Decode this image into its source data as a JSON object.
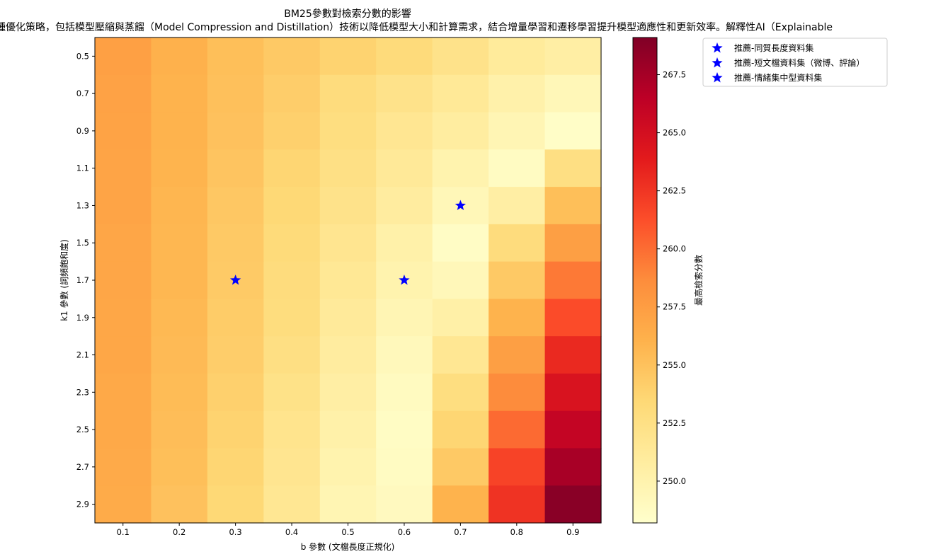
{
  "chart_data": {
    "type": "heatmap",
    "title": "BM25參數對檢索分數的影響",
    "subtitle": "種優化策略，包括模型壓縮與蒸餾（Model Compression and Distillation）技術以降低模型大小和計算需求，結合增量學習和遷移學習提升模型適應性和更新效率。解釋性AI（Explainable",
    "xlabel": "b 參數 (文檔長度正規化)",
    "ylabel": "k1 參數 (詞頻飽和度)",
    "x_values": [
      "0.1",
      "0.2",
      "0.3",
      "0.4",
      "0.5",
      "0.6",
      "0.7",
      "0.8",
      "0.9"
    ],
    "y_values": [
      "0.5",
      "0.7",
      "0.9",
      "1.1",
      "1.3",
      "1.5",
      "1.7",
      "1.9",
      "2.1",
      "2.3",
      "2.5",
      "2.7",
      "2.9"
    ],
    "z": [
      [
        257.3,
        256.1,
        255.2,
        254.5,
        253.8,
        253.1,
        252.2,
        251.1,
        250.6
      ],
      [
        257.2,
        256.0,
        255.1,
        254.2,
        253.0,
        252.2,
        251.4,
        250.2,
        249.4
      ],
      [
        257.1,
        256.0,
        255.0,
        254.0,
        252.8,
        251.7,
        250.8,
        249.6,
        248.5
      ],
      [
        257.0,
        255.9,
        254.8,
        253.6,
        252.5,
        251.3,
        250.0,
        248.8,
        252.6
      ],
      [
        257.0,
        255.8,
        254.6,
        253.4,
        252.2,
        250.9,
        249.4,
        250.6,
        255.2
      ],
      [
        256.9,
        255.7,
        254.5,
        253.2,
        251.8,
        250.3,
        248.6,
        253.0,
        257.4
      ],
      [
        256.9,
        255.7,
        254.4,
        253.0,
        251.5,
        250.0,
        249.3,
        254.5,
        259.5
      ],
      [
        256.8,
        255.6,
        254.3,
        252.9,
        251.2,
        249.6,
        250.4,
        256.0,
        261.4
      ],
      [
        256.8,
        255.5,
        254.2,
        252.6,
        250.9,
        249.2,
        251.6,
        257.4,
        263.1
      ],
      [
        256.7,
        255.4,
        254.0,
        252.3,
        250.6,
        248.9,
        252.8,
        258.7,
        264.6
      ],
      [
        256.7,
        255.3,
        253.8,
        252.0,
        250.3,
        248.7,
        253.6,
        260.1,
        266.0
      ],
      [
        256.6,
        255.2,
        253.6,
        251.8,
        250.0,
        248.8,
        254.5,
        261.8,
        267.4
      ],
      [
        256.5,
        255.0,
        253.4,
        251.6,
        249.7,
        249.0,
        256.0,
        262.6,
        268.7
      ]
    ],
    "zlim": [
      248.2,
      269.1
    ],
    "colormap": "YlOrRd",
    "colorbar_label": "最高檢索分數",
    "colorbar_ticks": [
      "250.0",
      "252.5",
      "255.0",
      "257.5",
      "260.0",
      "262.5",
      "265.0",
      "267.5"
    ],
    "markers": [
      {
        "name": "推薦-同質長度資料集",
        "x": 0.7,
        "y": 1.3,
        "color": "#0000ff",
        "shape": "star"
      },
      {
        "name": "推薦-短文檔資料集（微博、評論）",
        "x": 0.3,
        "y": 1.7,
        "color": "#0000ff",
        "shape": "star"
      },
      {
        "name": "推薦-情緒集中型資料集",
        "x": 0.6,
        "y": 1.7,
        "color": "#0000ff",
        "shape": "star"
      }
    ],
    "legend_position": "outside-top-right",
    "grid": false
  }
}
